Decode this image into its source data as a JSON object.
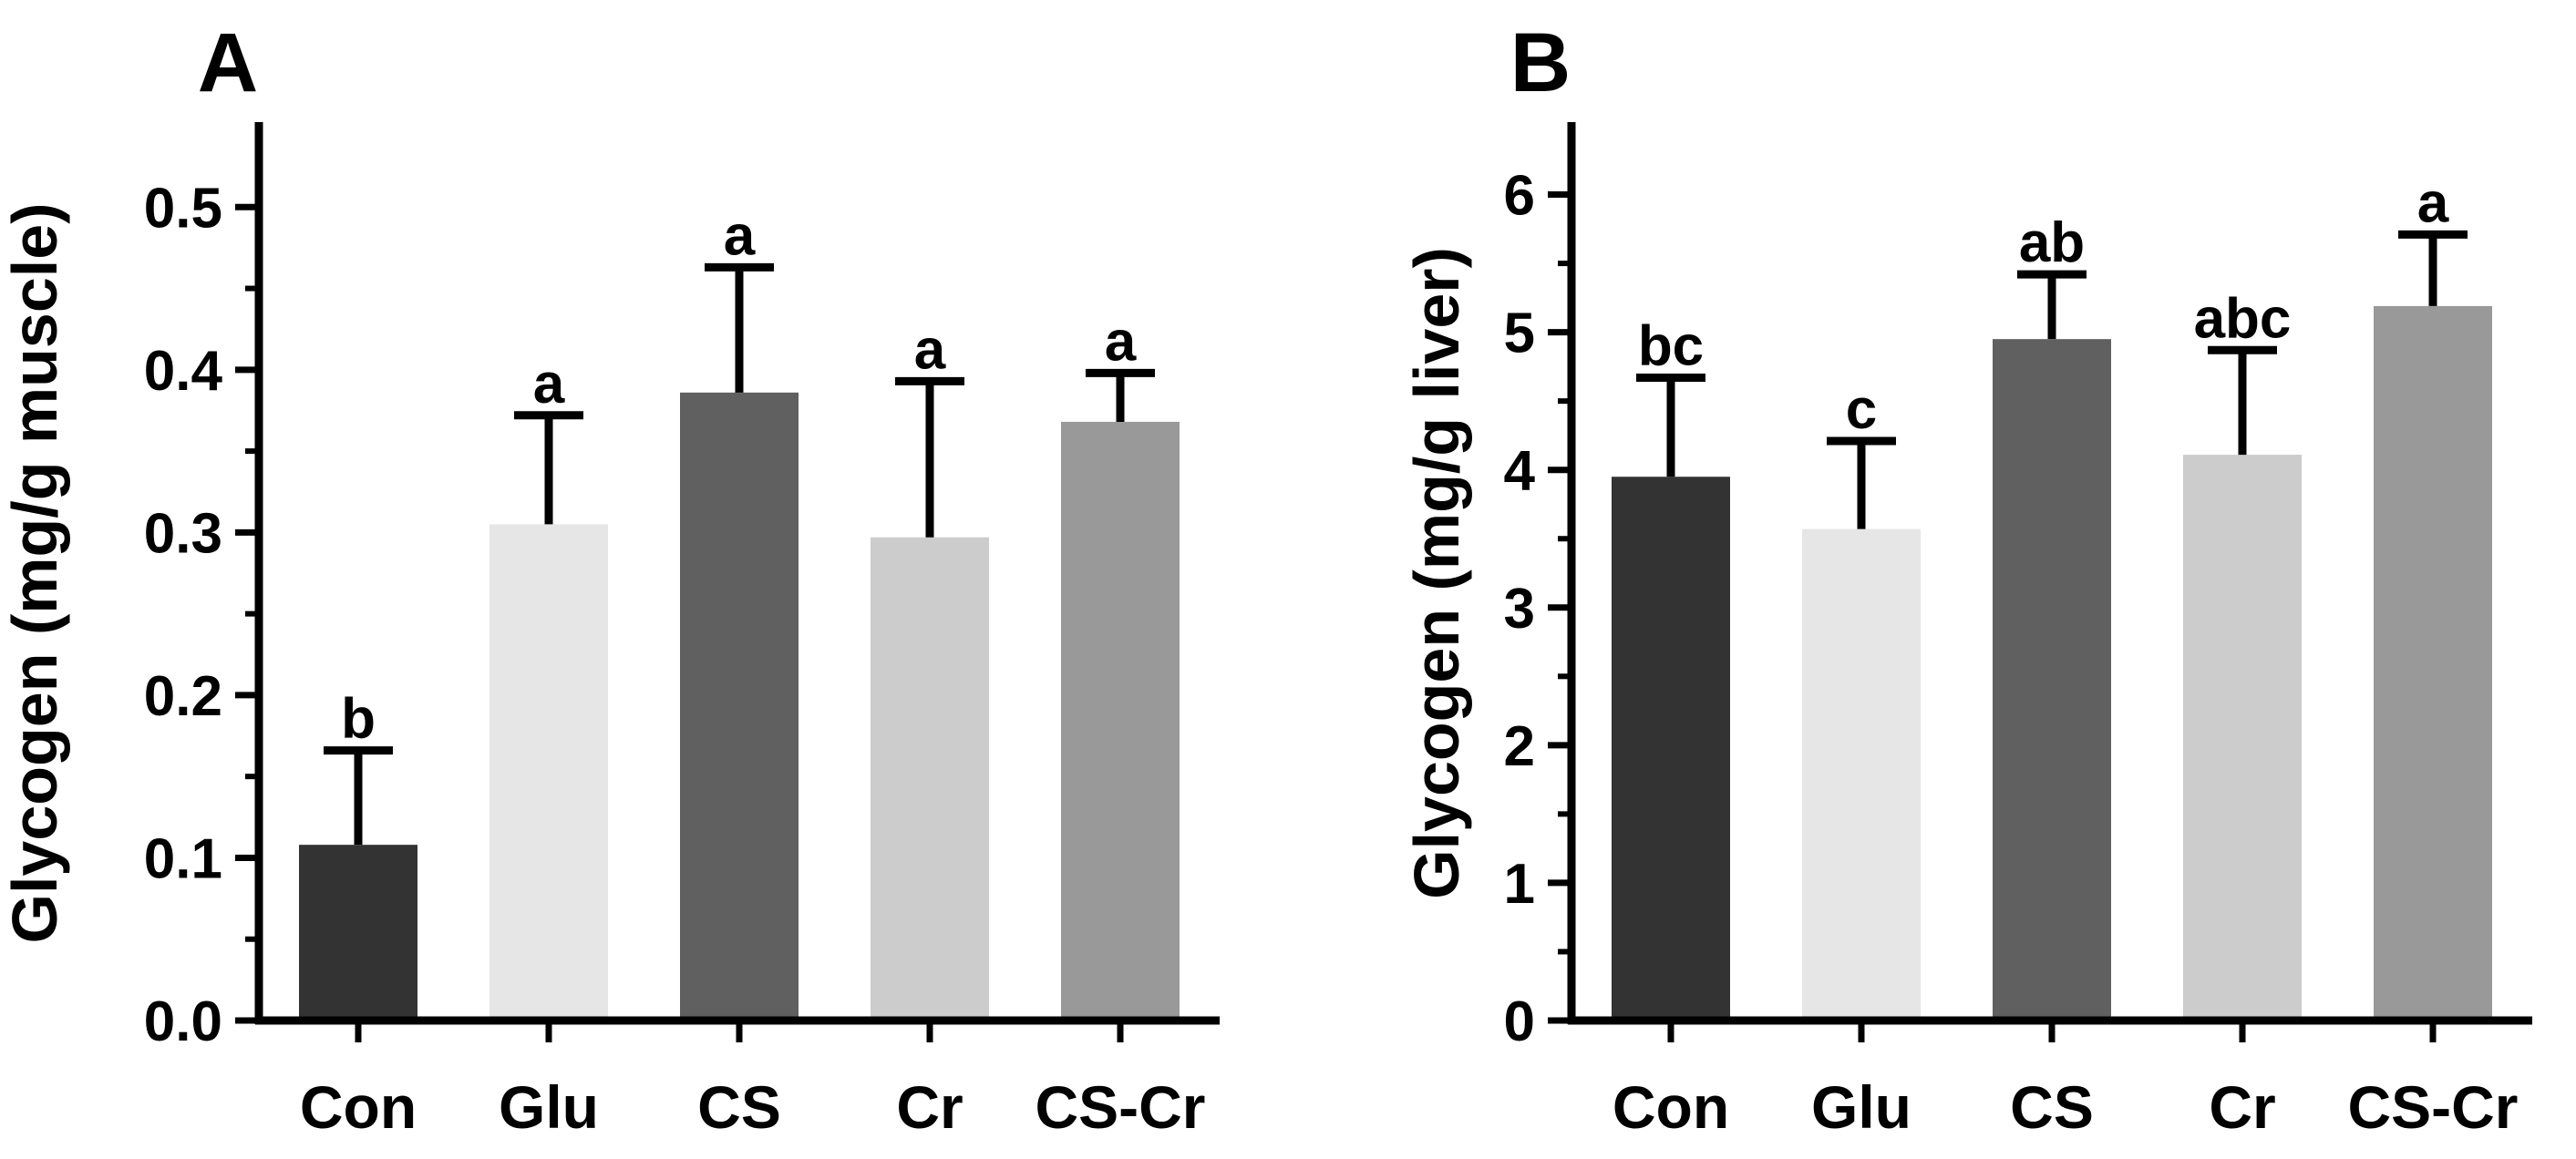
{
  "chart_data": [
    {
      "type": "bar",
      "panel_label": "A",
      "ylabel": "Glycogen (mg/g muscle)",
      "xlabel": "",
      "ylim": [
        0,
        0.55
      ],
      "yticks": [
        0.0,
        0.1,
        0.2,
        0.3,
        0.4,
        0.5
      ],
      "ytick_labels": [
        "0.0",
        "0.1",
        "0.2",
        "0.3",
        "0.4",
        "0.5"
      ],
      "categories": [
        "Con",
        "Glu",
        "CS",
        "Cr",
        "CS-Cr"
      ],
      "values": [
        0.108,
        0.305,
        0.386,
        0.297,
        0.368
      ],
      "error_upper": [
        0.166,
        0.372,
        0.463,
        0.393,
        0.398
      ],
      "significance_letters": [
        "b",
        "a",
        "a",
        "a",
        "a"
      ],
      "bar_colors": [
        "#333333",
        "#e6e6e6",
        "#606060",
        "#cccccc",
        "#999999"
      ]
    },
    {
      "type": "bar",
      "panel_label": "B",
      "ylabel": "Glycogen (mg/g liver)",
      "xlabel": "",
      "ylim": [
        0,
        6.5
      ],
      "yticks": [
        0,
        1,
        2,
        3,
        4,
        5,
        6
      ],
      "ytick_labels": [
        "0",
        "1",
        "2",
        "3",
        "4",
        "5",
        "6"
      ],
      "categories": [
        "Con",
        "Glu",
        "CS",
        "Cr",
        "CS-Cr"
      ],
      "values": [
        3.95,
        3.57,
        4.95,
        4.11,
        5.19
      ],
      "error_upper": [
        4.67,
        4.21,
        5.42,
        4.87,
        5.71
      ],
      "significance_letters": [
        "bc",
        "c",
        "ab",
        "abc",
        "a"
      ],
      "bar_colors": [
        "#333333",
        "#e6e6e6",
        "#606060",
        "#cccccc",
        "#999999"
      ]
    }
  ]
}
